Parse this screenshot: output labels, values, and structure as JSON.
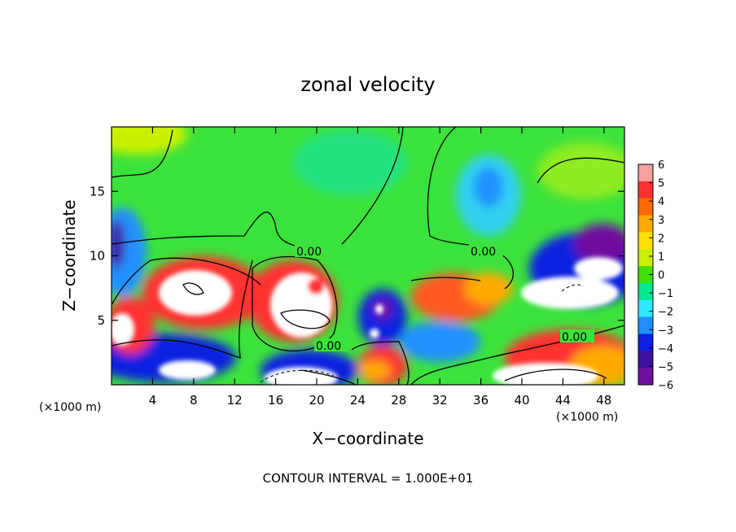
{
  "chart_data": {
    "type": "heatmap",
    "title": "zonal velocity",
    "xlabel": "X−coordinate",
    "ylabel": "Z−coordinate",
    "x_unit_left": "(×1000 m)",
    "x_unit_right": "(×1000 m)",
    "xlim": [
      0,
      50
    ],
    "ylim": [
      0,
      20
    ],
    "x_ticks": [
      4,
      8,
      12,
      16,
      20,
      24,
      28,
      32,
      36,
      40,
      44,
      48
    ],
    "y_ticks": [
      5,
      10,
      15
    ],
    "colorbar": {
      "ticks": [
        6,
        5,
        4,
        3,
        2,
        1,
        0,
        -1,
        -2,
        -3,
        -4,
        -5,
        -6
      ],
      "tick_labels": [
        "6",
        "5",
        "4",
        "3",
        "2",
        "1",
        "0",
        "−1",
        "−2",
        "−3",
        "−4",
        "−5",
        "−6"
      ],
      "colors": [
        "#f7a0a0",
        "#ff3030",
        "#ff6a00",
        "#ffaa00",
        "#ffe000",
        "#c8f000",
        "#40e000",
        "#00e890",
        "#30e8ff",
        "#2090ff",
        "#1020e0",
        "#4010a0",
        "#7010a0"
      ]
    },
    "contour_labels": [
      "0.00",
      "0.00",
      "0.00",
      "0.00"
    ],
    "footnote": "CONTOUR INTERVAL = 1.000E+01"
  }
}
